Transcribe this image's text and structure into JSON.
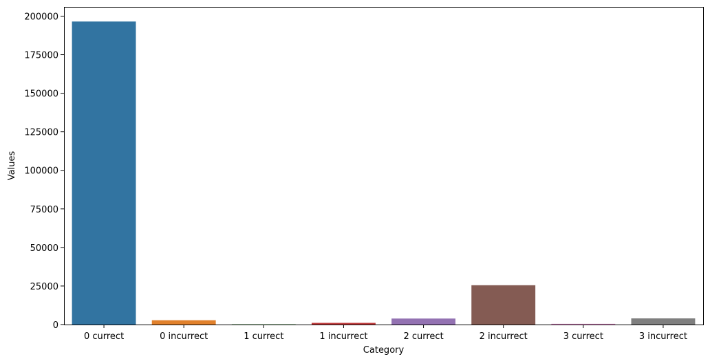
{
  "chart_data": {
    "type": "bar",
    "title": "",
    "xlabel": "Category",
    "ylabel": "Values",
    "categories": [
      "0 currect",
      "0 incurrect",
      "1 currect",
      "1 incurrect",
      "2 currect",
      "2 incurrect",
      "3 currect",
      "3 incurrect"
    ],
    "values": [
      196500,
      2800,
      150,
      1100,
      3900,
      25500,
      500,
      4000
    ],
    "colors": [
      "#3274a1",
      "#e1812c",
      "#3a923a",
      "#c03d3e",
      "#9372b2",
      "#845b53",
      "#d684bd",
      "#7f7f7f"
    ],
    "ylim": [
      0,
      206000
    ],
    "yticks": [
      0,
      25000,
      50000,
      75000,
      100000,
      125000,
      150000,
      175000,
      200000
    ],
    "ytick_labels": [
      "0",
      "25000",
      "50000",
      "75000",
      "100000",
      "125000",
      "150000",
      "175000",
      "200000"
    ],
    "grid": false,
    "legend": "none"
  }
}
